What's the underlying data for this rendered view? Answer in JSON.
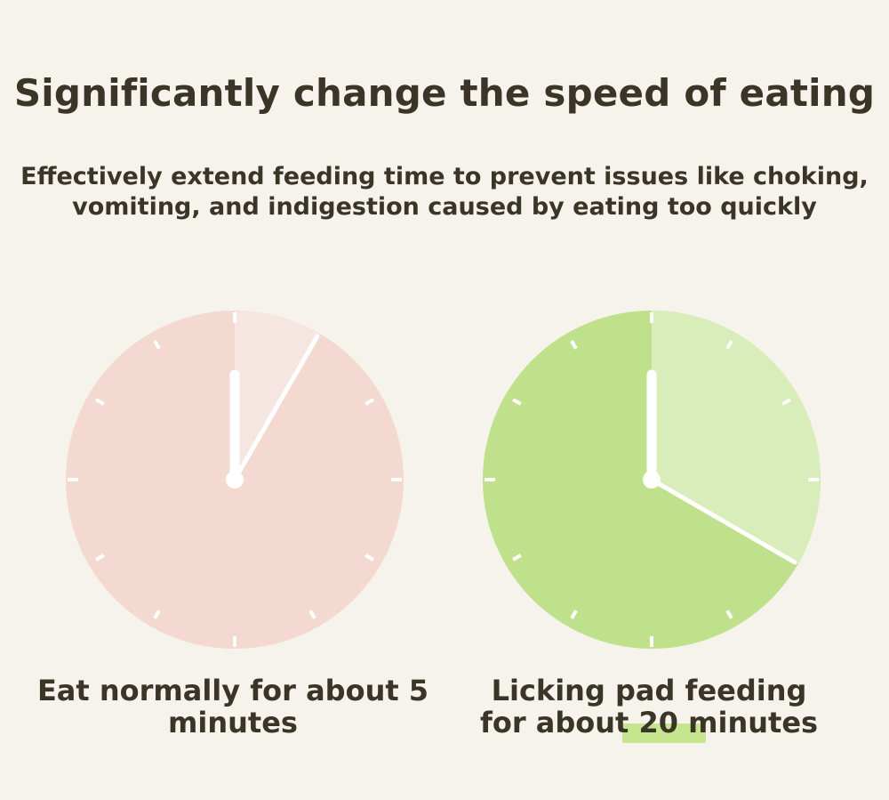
{
  "title": "Significantly change the speed of eating",
  "subtitle_line1": "Effectively extend feeding time to prevent issues like choking,",
  "subtitle_line2": "vomiting, and indigestion caused by eating too quickly",
  "clocks": [
    {
      "id": "normal",
      "minutes": 5,
      "face_color": "#f4d9d1",
      "sector_color": "#f6e6e2",
      "caption_line1": "Eat normally for about 5",
      "caption_line2": "minutes"
    },
    {
      "id": "pad",
      "minutes": 20,
      "face_color": "#bfe18c",
      "sector_color": "#d8edb9",
      "caption_line1": "Licking pad feeding",
      "caption_line2": "for about 20 minutes"
    }
  ],
  "hand_color": "#ffffff",
  "highlight_color": "#c5e58e"
}
